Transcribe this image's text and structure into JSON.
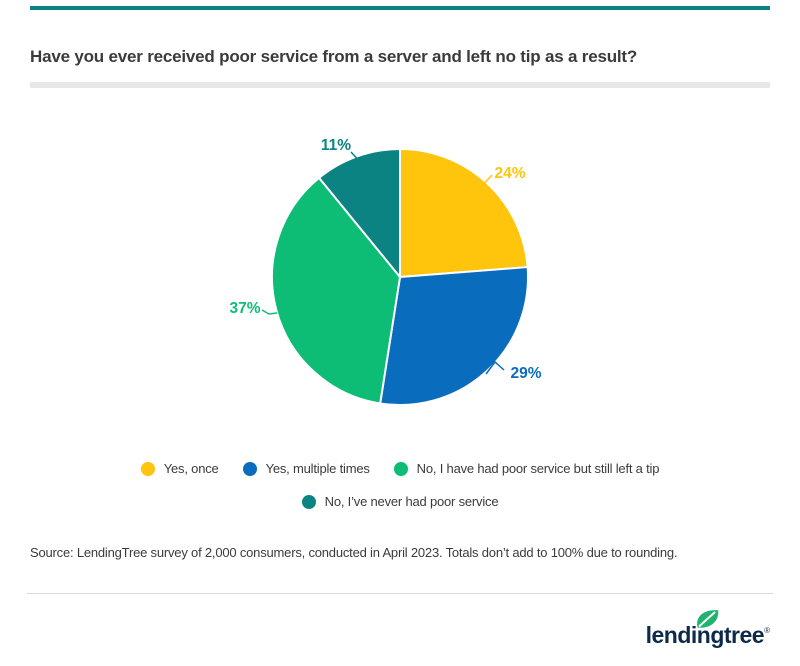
{
  "page": {
    "title": "Have you ever received poor service from a server and left no tip as a result?",
    "source_note": "Source: LendingTree survey of 2,000 consumers, conducted in April 2023. Totals don’t add to 100% due to rounding.",
    "accent_color": "#0b8382",
    "brand": {
      "logo_text": "lendingtree",
      "registered_mark": "®",
      "logo_color": "#0d2b49",
      "leaf_color": "#1fb46e"
    }
  },
  "chart_data": {
    "type": "pie",
    "title": "Have you ever received poor service from a server and left no tip as a result?",
    "categories": [
      "Yes, once",
      "Yes, multiple times",
      "No, I have had poor service but still left a tip",
      "No, I’ve never had poor service"
    ],
    "values": [
      24,
      29,
      37,
      11
    ],
    "labels": [
      "24%",
      "29%",
      "37%",
      "11%"
    ],
    "unit": "%",
    "colors": [
      "#ffc40c",
      "#0a6cbc",
      "#0dbd75",
      "#0b8382"
    ],
    "legend_position": "bottom",
    "start_angle_deg": 0,
    "direction": "clockwise",
    "note": "Totals don’t add to 100% due to rounding."
  }
}
